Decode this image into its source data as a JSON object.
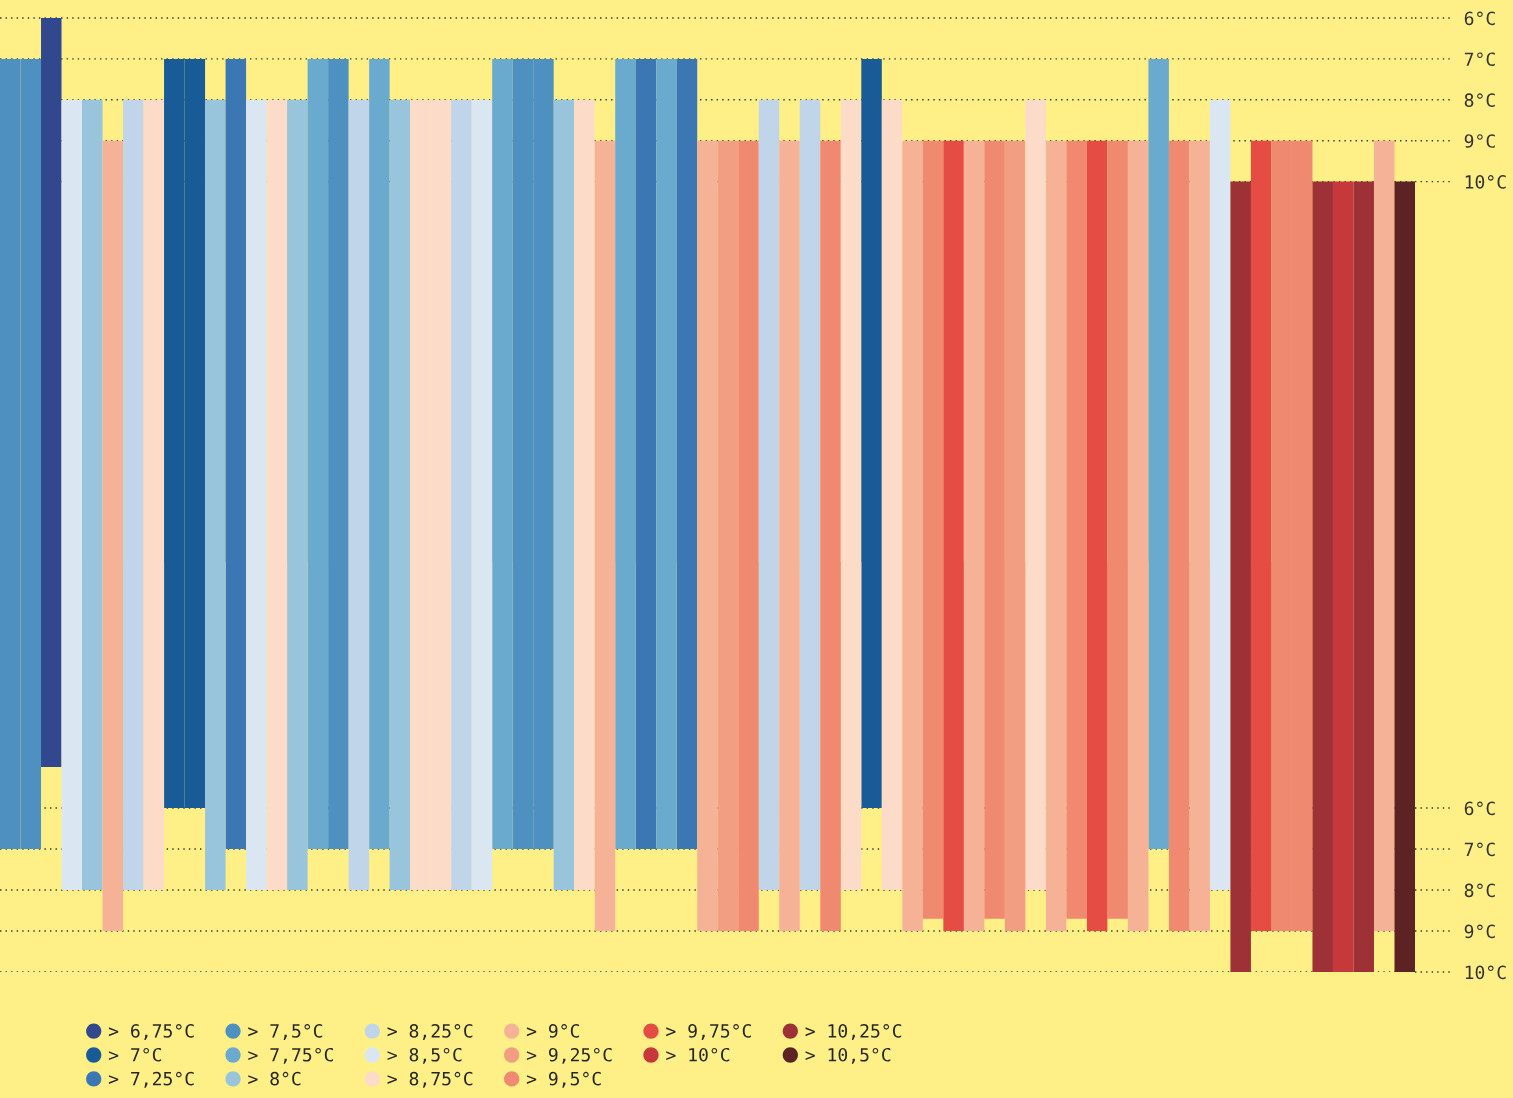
{
  "chart_data": [
    {
      "type": "bar",
      "categories": [
        null,
        null,
        null,
        null,
        null,
        null,
        null,
        null,
        null,
        null,
        null,
        null,
        null,
        null,
        null,
        null,
        null,
        null,
        null,
        null,
        null,
        null,
        null,
        null,
        null,
        null,
        null,
        null,
        null,
        null,
        null,
        null,
        null,
        null,
        null,
        null,
        null,
        null,
        null,
        null,
        null,
        null,
        null,
        null,
        null,
        null,
        null,
        null,
        null,
        null,
        null,
        null,
        null,
        null,
        null,
        null,
        null,
        null,
        null,
        null,
        null,
        null,
        null,
        null,
        null,
        null,
        null,
        null,
        null
      ],
      "base": [
        7,
        7,
        6,
        8,
        8,
        9,
        8,
        8,
        7,
        7,
        8,
        7,
        8,
        8,
        8,
        7,
        7,
        8,
        7,
        8,
        8,
        8,
        8,
        8,
        7,
        7,
        7,
        8,
        8,
        9,
        7,
        7,
        7,
        7,
        9,
        9,
        9,
        8,
        9,
        8,
        9,
        8,
        7,
        8,
        9,
        9,
        9,
        9,
        9,
        9,
        8,
        9,
        9,
        9,
        9,
        9,
        7,
        9,
        9,
        8,
        10,
        9,
        9,
        9,
        10,
        10,
        10,
        9,
        10
      ],
      "values": [
        12.3,
        12.3,
        13.3,
        11.3,
        11.3,
        10.3,
        11.3,
        11.3,
        12.3,
        12.3,
        11.3,
        12.3,
        11.3,
        11.3,
        11.3,
        12.3,
        12.3,
        11.3,
        12.3,
        11.3,
        11.3,
        11.3,
        11.3,
        11.3,
        12.3,
        12.3,
        12.3,
        11.3,
        11.3,
        10.3,
        12.3,
        12.3,
        12.3,
        12.3,
        10.3,
        10.3,
        10.3,
        11.3,
        10.3,
        11.3,
        10.3,
        11.3,
        12.3,
        11.3,
        10.3,
        10.3,
        10.3,
        10.3,
        10.3,
        10.3,
        11.3,
        10.3,
        10.3,
        10.3,
        10.3,
        10.3,
        12.3,
        10.3,
        10.3,
        11.3,
        9.3,
        10.3,
        10.3,
        10.3,
        9.3,
        9.3,
        9.3,
        10.3,
        9.3
      ],
      "colors": [
        "#4e91c1",
        "#4e91c1",
        "#31488f",
        "#dae7f2",
        "#98c4dc",
        "#f6b297",
        "#c0d5e9",
        "#fcdcc8",
        "#185b96",
        "#185b96",
        "#98c4dc",
        "#3b77b3",
        "#dae7f2",
        "#fcdcc8",
        "#98c4dc",
        "#6baacf",
        "#4e91c1",
        "#c0d5e9",
        "#6baacf",
        "#98c4dc",
        "#fcdcc8",
        "#fcdcc8",
        "#c0d5e9",
        "#dae7f2",
        "#6baacf",
        "#4e91c1",
        "#4e91c1",
        "#98c4dc",
        "#fcdcc8",
        "#f6b297",
        "#6baacf",
        "#3b77b3",
        "#6baacf",
        "#3b77b3",
        "#f6b297",
        "#f29e82",
        "#ef8a71",
        "#c0d5e9",
        "#f6b297",
        "#c0d5e9",
        "#ef8a71",
        "#fcdcc8",
        "#185b96",
        "#fcdcc8",
        "#f6b297",
        "#ef8a71",
        "#e54c43",
        "#f6b297",
        "#ef8a71",
        "#f29e82",
        "#fcdcc8",
        "#f6b297",
        "#ef8a71",
        "#e54c43",
        "#ef8a71",
        "#f6b297",
        "#6baacf",
        "#ef8a71",
        "#f6b297",
        "#dae7f2",
        "#9e3135",
        "#e54c43",
        "#ef8a71",
        "#ef8a71",
        "#9e3135",
        "#c6383b",
        "#9e3135",
        "#f6b297",
        "#5d2223"
      ],
      "ylim": [
        19.3,
        5.56
      ],
      "yticks": [
        {
          "value": 6,
          "label": "6°C"
        },
        {
          "value": 7,
          "label": "7°C"
        },
        {
          "value": 8,
          "label": "8°C"
        },
        {
          "value": 9,
          "label": "9°C"
        },
        {
          "value": 10,
          "label": "10°C"
        }
      ],
      "grid": "y",
      "tick_labels": "y"
    },
    {
      "type": "bar",
      "categories": [
        null,
        null,
        null,
        null,
        null,
        null,
        null,
        null,
        null,
        null,
        null,
        null,
        null,
        null,
        null,
        null,
        null,
        null,
        null,
        null,
        null,
        null,
        null,
        null,
        null,
        null,
        null,
        null,
        null,
        null,
        null,
        null,
        null,
        null,
        null,
        null,
        null,
        null,
        null,
        null,
        null,
        null,
        null,
        null,
        null,
        null,
        null,
        null,
        null,
        null,
        null,
        null,
        null,
        null,
        null,
        null,
        null,
        null,
        null,
        null,
        null,
        null,
        null,
        null,
        null,
        null,
        null,
        null,
        null
      ],
      "series": [
        {
          "name": "> 6,75°C",
          "color": "#31488f",
          "values": [
            null,
            null,
            5,
            null,
            null,
            null,
            null,
            null,
            null,
            null,
            null,
            null,
            null,
            null,
            null,
            null,
            null,
            null,
            null,
            null,
            null,
            null,
            null,
            null,
            null,
            null,
            null,
            null,
            null,
            null,
            null,
            null,
            null,
            null,
            null,
            null,
            null,
            null,
            null,
            null,
            null,
            null,
            null,
            null,
            null,
            null,
            null,
            null,
            null,
            null,
            null,
            null,
            null,
            null,
            null,
            null,
            null,
            null,
            null,
            null,
            null,
            null,
            null,
            null,
            null,
            null,
            null,
            null,
            null
          ]
        },
        {
          "name": "> 7°C",
          "color": "#185b96",
          "values": [
            null,
            null,
            null,
            null,
            null,
            null,
            null,
            null,
            6,
            6,
            null,
            null,
            null,
            null,
            null,
            null,
            null,
            null,
            null,
            null,
            null,
            null,
            null,
            null,
            null,
            null,
            null,
            null,
            null,
            null,
            null,
            null,
            null,
            null,
            null,
            null,
            null,
            null,
            null,
            null,
            null,
            null,
            6,
            null,
            null,
            null,
            null,
            null,
            null,
            null,
            null,
            null,
            null,
            null,
            null,
            null,
            null,
            null,
            null,
            null,
            null,
            null,
            null,
            null,
            null,
            null,
            null,
            null,
            null
          ]
        },
        {
          "name": "> 7,25°C",
          "color": "#3b77b3",
          "values": [
            null,
            null,
            null,
            null,
            null,
            null,
            null,
            null,
            null,
            null,
            null,
            7,
            null,
            null,
            null,
            null,
            null,
            null,
            null,
            null,
            null,
            null,
            null,
            null,
            null,
            null,
            null,
            null,
            null,
            null,
            null,
            7,
            null,
            7,
            null,
            null,
            null,
            null,
            null,
            null,
            null,
            null,
            null,
            null,
            null,
            null,
            null,
            null,
            null,
            null,
            null,
            null,
            null,
            null,
            null,
            null,
            null,
            null,
            null,
            null,
            null,
            null,
            null,
            null,
            null,
            null,
            null,
            null,
            null
          ]
        },
        {
          "name": "> 7,5°C",
          "color": "#4e91c1",
          "values": [
            7,
            7,
            null,
            null,
            null,
            null,
            null,
            null,
            null,
            null,
            null,
            null,
            null,
            null,
            null,
            null,
            7,
            null,
            null,
            null,
            null,
            null,
            null,
            null,
            null,
            7,
            7,
            null,
            null,
            null,
            null,
            null,
            null,
            null,
            null,
            null,
            null,
            null,
            null,
            null,
            null,
            null,
            null,
            null,
            null,
            null,
            null,
            null,
            null,
            null,
            null,
            null,
            null,
            null,
            null,
            null,
            null,
            null,
            null,
            null,
            null,
            null,
            null,
            null,
            null,
            null,
            null,
            null,
            null
          ]
        },
        {
          "name": "> 7,75°C",
          "color": "#6baacf",
          "values": [
            null,
            null,
            null,
            null,
            null,
            null,
            null,
            null,
            null,
            null,
            null,
            null,
            null,
            null,
            null,
            7,
            null,
            null,
            7,
            null,
            null,
            null,
            null,
            null,
            7,
            null,
            null,
            null,
            null,
            null,
            7,
            null,
            7,
            null,
            null,
            null,
            null,
            null,
            null,
            null,
            null,
            null,
            null,
            null,
            null,
            null,
            null,
            null,
            null,
            null,
            null,
            null,
            null,
            null,
            null,
            null,
            7,
            null,
            null,
            null,
            null,
            null,
            null,
            null,
            null,
            null,
            null,
            null,
            null
          ]
        },
        {
          "name": "> 8°C",
          "color": "#98c4dc",
          "values": [
            null,
            null,
            null,
            null,
            8,
            null,
            null,
            null,
            null,
            null,
            8,
            null,
            null,
            null,
            8,
            null,
            null,
            null,
            null,
            8,
            null,
            null,
            null,
            null,
            null,
            null,
            null,
            8,
            null,
            null,
            null,
            null,
            null,
            null,
            null,
            null,
            null,
            null,
            null,
            null,
            null,
            null,
            null,
            null,
            null,
            null,
            null,
            null,
            null,
            null,
            null,
            null,
            null,
            null,
            null,
            null,
            null,
            null,
            null,
            null,
            null,
            null,
            null,
            null,
            null,
            null,
            null,
            null,
            null
          ]
        },
        {
          "name": "> 8,25°C",
          "color": "#c0d5e9",
          "values": [
            null,
            null,
            null,
            null,
            null,
            null,
            8,
            null,
            null,
            null,
            null,
            null,
            null,
            null,
            null,
            null,
            null,
            8,
            null,
            null,
            null,
            null,
            8,
            null,
            null,
            null,
            null,
            null,
            null,
            null,
            null,
            null,
            null,
            null,
            null,
            null,
            null,
            8,
            null,
            8,
            null,
            null,
            null,
            null,
            null,
            null,
            null,
            null,
            null,
            null,
            null,
            null,
            null,
            null,
            null,
            null,
            null,
            null,
            null,
            null,
            null,
            null,
            null,
            null,
            null,
            null,
            null,
            null,
            null
          ]
        },
        {
          "name": "> 8,5°C",
          "color": "#dae7f2",
          "values": [
            null,
            null,
            null,
            8,
            null,
            null,
            null,
            null,
            null,
            null,
            null,
            null,
            8,
            null,
            null,
            null,
            null,
            null,
            null,
            null,
            null,
            null,
            null,
            8,
            null,
            null,
            null,
            null,
            null,
            null,
            null,
            null,
            null,
            null,
            null,
            null,
            null,
            null,
            null,
            null,
            null,
            null,
            null,
            null,
            null,
            null,
            null,
            null,
            null,
            null,
            null,
            null,
            null,
            null,
            null,
            null,
            null,
            null,
            null,
            8,
            null,
            null,
            null,
            null,
            null,
            null,
            null,
            null,
            null
          ]
        },
        {
          "name": "> 8,75°C",
          "color": "#fcdcc8",
          "values": [
            null,
            null,
            null,
            null,
            null,
            null,
            null,
            8,
            null,
            null,
            null,
            null,
            null,
            8,
            null,
            null,
            null,
            null,
            null,
            null,
            8,
            8,
            null,
            null,
            null,
            null,
            null,
            null,
            8,
            null,
            null,
            null,
            null,
            null,
            null,
            null,
            null,
            null,
            null,
            null,
            null,
            8,
            null,
            8,
            null,
            null,
            null,
            null,
            null,
            null,
            8,
            null,
            null,
            null,
            null,
            null,
            null,
            null,
            null,
            null,
            null,
            null,
            null,
            null,
            null,
            null,
            null,
            null,
            null
          ]
        },
        {
          "name": "> 9°C",
          "color": "#f6b297",
          "values": [
            null,
            null,
            null,
            null,
            null,
            9,
            null,
            null,
            null,
            null,
            null,
            null,
            null,
            null,
            null,
            null,
            null,
            null,
            null,
            null,
            null,
            null,
            null,
            null,
            null,
            null,
            null,
            null,
            null,
            9,
            null,
            null,
            null,
            null,
            9,
            null,
            null,
            null,
            9,
            null,
            null,
            null,
            null,
            null,
            9,
            null,
            null,
            9,
            null,
            null,
            null,
            9,
            null,
            null,
            null,
            9,
            null,
            null,
            9,
            null,
            null,
            null,
            null,
            null,
            null,
            null,
            null,
            9,
            null
          ]
        },
        {
          "name": "> 9,25°C",
          "color": "#f29e82",
          "values": [
            null,
            null,
            null,
            null,
            null,
            null,
            null,
            null,
            null,
            null,
            null,
            null,
            null,
            null,
            null,
            null,
            null,
            null,
            null,
            null,
            null,
            null,
            null,
            null,
            null,
            null,
            null,
            null,
            null,
            null,
            null,
            null,
            null,
            null,
            null,
            9,
            null,
            null,
            null,
            null,
            null,
            null,
            null,
            null,
            null,
            null,
            null,
            null,
            null,
            9,
            null,
            null,
            null,
            null,
            null,
            null,
            null,
            null,
            null,
            null,
            null,
            null,
            null,
            null,
            null,
            null,
            null,
            null,
            null
          ]
        },
        {
          "name": "> 9,5°C",
          "color": "#ef8a71",
          "values": [
            null,
            null,
            null,
            null,
            null,
            null,
            null,
            null,
            null,
            null,
            null,
            null,
            null,
            null,
            null,
            null,
            null,
            null,
            null,
            null,
            null,
            null,
            null,
            null,
            null,
            null,
            null,
            null,
            null,
            null,
            null,
            null,
            null,
            null,
            null,
            null,
            9,
            null,
            null,
            null,
            9,
            null,
            null,
            null,
            null,
            8.7,
            null,
            null,
            8.7,
            null,
            null,
            null,
            8.7,
            null,
            8.7,
            null,
            null,
            9,
            null,
            null,
            null,
            null,
            9,
            9,
            null,
            null,
            null,
            null,
            null
          ]
        },
        {
          "name": "> 9,75°C",
          "color": "#e54c43",
          "values": [
            null,
            null,
            null,
            null,
            null,
            null,
            null,
            null,
            null,
            null,
            null,
            null,
            null,
            null,
            null,
            null,
            null,
            null,
            null,
            null,
            null,
            null,
            null,
            null,
            null,
            null,
            null,
            null,
            null,
            null,
            null,
            null,
            null,
            null,
            null,
            null,
            null,
            null,
            null,
            null,
            null,
            null,
            null,
            null,
            null,
            null,
            9,
            null,
            null,
            null,
            null,
            null,
            null,
            9,
            null,
            null,
            null,
            null,
            null,
            null,
            null,
            9,
            null,
            null,
            null,
            null,
            null,
            null,
            null
          ]
        },
        {
          "name": "> 10°C",
          "color": "#c6383b",
          "values": [
            null,
            null,
            null,
            null,
            null,
            null,
            null,
            null,
            null,
            null,
            null,
            null,
            null,
            null,
            null,
            null,
            null,
            null,
            null,
            null,
            null,
            null,
            null,
            null,
            null,
            null,
            null,
            null,
            null,
            null,
            null,
            null,
            null,
            null,
            null,
            null,
            null,
            null,
            null,
            null,
            null,
            null,
            null,
            null,
            null,
            null,
            null,
            null,
            null,
            null,
            null,
            null,
            null,
            null,
            null,
            null,
            null,
            null,
            null,
            null,
            null,
            null,
            null,
            null,
            null,
            10,
            null,
            null,
            null
          ]
        },
        {
          "name": "> 10,25°C",
          "color": "#9e3135",
          "values": [
            null,
            null,
            null,
            null,
            null,
            null,
            null,
            null,
            null,
            null,
            null,
            null,
            null,
            null,
            null,
            null,
            null,
            null,
            null,
            null,
            null,
            null,
            null,
            null,
            null,
            null,
            null,
            null,
            null,
            null,
            null,
            null,
            null,
            null,
            null,
            null,
            null,
            null,
            null,
            null,
            null,
            null,
            null,
            null,
            null,
            null,
            null,
            null,
            null,
            null,
            null,
            null,
            null,
            null,
            null,
            null,
            null,
            null,
            null,
            null,
            10,
            null,
            null,
            null,
            10,
            null,
            10,
            null,
            null
          ]
        },
        {
          "name": "> 10,5°C",
          "color": "#5d2223",
          "values": [
            null,
            null,
            null,
            null,
            null,
            null,
            null,
            null,
            null,
            null,
            null,
            null,
            null,
            null,
            null,
            null,
            null,
            null,
            null,
            null,
            null,
            null,
            null,
            null,
            null,
            null,
            null,
            null,
            null,
            null,
            null,
            null,
            null,
            null,
            null,
            null,
            null,
            null,
            null,
            null,
            null,
            null,
            null,
            null,
            null,
            null,
            null,
            null,
            null,
            null,
            null,
            null,
            null,
            null,
            null,
            null,
            null,
            null,
            null,
            null,
            null,
            null,
            null,
            null,
            null,
            null,
            null,
            null,
            10
          ]
        }
      ],
      "ylim": [
        10,
        0
      ],
      "yticks": [
        {
          "value": 6,
          "label": "6°C"
        },
        {
          "value": 7,
          "label": "7°C"
        },
        {
          "value": 8,
          "label": "8°C"
        },
        {
          "value": 9,
          "label": "9°C"
        },
        {
          "value": 10,
          "label": "10°C"
        }
      ],
      "grid": "y",
      "tick_labels": "y",
      "legend": "bottom"
    }
  ]
}
